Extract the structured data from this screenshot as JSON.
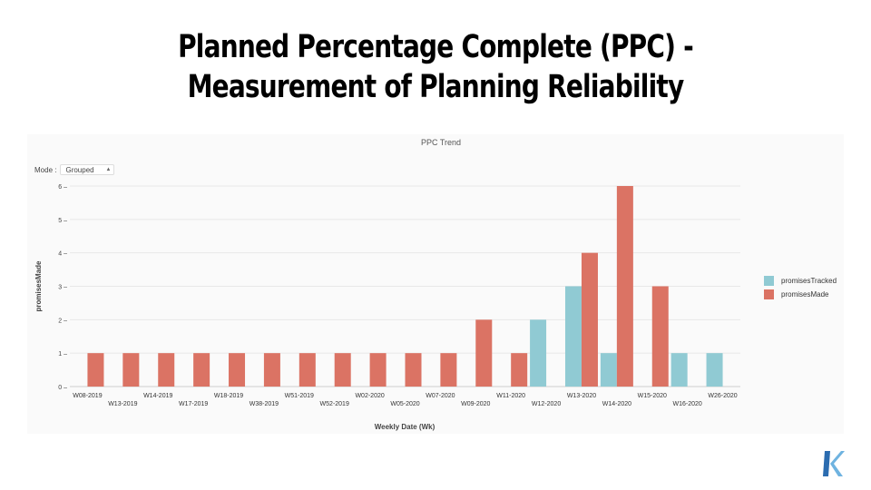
{
  "slide": {
    "title_line1": "Planned Percentage Complete (PPC) -",
    "title_line2": "Measurement of Planning Reliability"
  },
  "controls": {
    "mode_label": "Mode :",
    "mode_value": "Grouped",
    "mode_icon": "updown-arrows-icon"
  },
  "logo": {
    "icon": "k-logo-icon",
    "colors": [
      "#2b6cb0",
      "#6fb3e0"
    ]
  },
  "chart_data": {
    "type": "bar",
    "mode": "grouped",
    "title": "PPC Trend",
    "xlabel": "Weekly Date (Wk)",
    "ylabel": "promisesMade",
    "ylim": [
      0,
      6
    ],
    "yticks": [
      0,
      1,
      2,
      3,
      4,
      5,
      6
    ],
    "grid": true,
    "legend_position": "right",
    "categories": [
      "W08-2019",
      "W13-2019",
      "W14-2019",
      "W17-2019",
      "W18-2019",
      "W38-2019",
      "W51-2019",
      "W52-2019",
      "W02-2020",
      "W05-2020",
      "W07-2020",
      "W09-2020",
      "W11-2020",
      "W12-2020",
      "W13-2020",
      "W14-2020",
      "W15-2020",
      "W16-2020",
      "W26-2020"
    ],
    "series": [
      {
        "name": "promisesTracked",
        "color": "#90cad3",
        "values": [
          0,
          0,
          0,
          0,
          0,
          0,
          0,
          0,
          0,
          0,
          0,
          0,
          0,
          2,
          3,
          1,
          0,
          1,
          1
        ]
      },
      {
        "name": "promisesMade",
        "color": "#db7364",
        "values": [
          1,
          1,
          1,
          1,
          1,
          1,
          1,
          1,
          1,
          1,
          1,
          2,
          1,
          0,
          4,
          6,
          3,
          0,
          0
        ]
      }
    ]
  }
}
